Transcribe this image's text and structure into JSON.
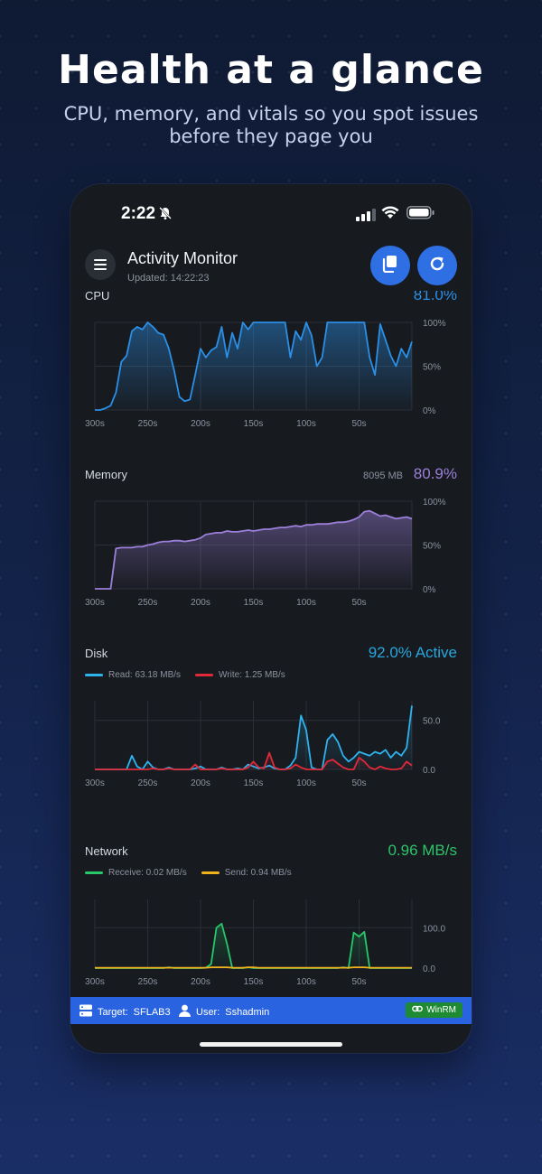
{
  "promo": {
    "headline": "Health at a glance",
    "subline": "CPU, memory, and vitals so you spot issues before they page you"
  },
  "status_bar": {
    "time": "2:22"
  },
  "app": {
    "title": "Activity Monitor",
    "updated": "Updated: 14:22:23",
    "copy_button_icon": "copy-icon",
    "refresh_button_icon": "refresh-icon",
    "menu_icon": "hamburger-icon"
  },
  "sections": {
    "cpu": {
      "title": "CPU",
      "value": "81.0%",
      "color": "#2b8fe6"
    },
    "memory": {
      "title": "Memory",
      "aux": "8095 MB",
      "value": "80.9%",
      "color": "#9b7fd9"
    },
    "disk": {
      "title": "Disk",
      "value": "92.0% Active",
      "color": "#29a6dd",
      "legend": [
        {
          "label": "Read: 63.18 MB/s",
          "color": "#2fb3ee"
        },
        {
          "label": "Write: 1.25 MB/s",
          "color": "#e02a3a"
        }
      ]
    },
    "network": {
      "title": "Network",
      "value": "0.96 MB/s",
      "color": "#2ec46a",
      "legend": [
        {
          "label": "Receive: 0.02 MB/s",
          "color": "#27c76a"
        },
        {
          "label": "Send: 0.94 MB/s",
          "color": "#f1b21c"
        }
      ]
    }
  },
  "chart_data": [
    {
      "id": "cpu",
      "type": "area",
      "x": [
        300,
        295,
        290,
        285,
        280,
        275,
        270,
        265,
        260,
        255,
        250,
        245,
        240,
        235,
        230,
        225,
        220,
        215,
        210,
        205,
        200,
        195,
        190,
        185,
        180,
        175,
        170,
        165,
        160,
        155,
        150,
        145,
        140,
        135,
        130,
        125,
        120,
        115,
        110,
        105,
        100,
        95,
        90,
        85,
        80,
        75,
        70,
        65,
        60,
        55,
        50,
        45,
        40,
        35,
        30,
        25,
        20,
        15,
        10,
        5,
        0
      ],
      "xticks": [
        "300s",
        "250s",
        "200s",
        "150s",
        "100s",
        "50s"
      ],
      "yticks": [
        "100%",
        "50%",
        "0%"
      ],
      "ylim": [
        0,
        100
      ],
      "series": [
        {
          "values": [
            0,
            0,
            2,
            5,
            20,
            55,
            62,
            90,
            95,
            92,
            100,
            95,
            88,
            86,
            70,
            45,
            15,
            10,
            12,
            40,
            70,
            60,
            68,
            72,
            95,
            60,
            88,
            70,
            100,
            92,
            100,
            100,
            100,
            100,
            100,
            100,
            100,
            60,
            90,
            80,
            100,
            85,
            50,
            60,
            100,
            100,
            100,
            100,
            100,
            100,
            100,
            100,
            60,
            40,
            98,
            80,
            62,
            50,
            70,
            60,
            78
          ]
        }
      ]
    },
    {
      "id": "memory",
      "type": "area",
      "x": [
        300,
        295,
        290,
        285,
        280,
        275,
        270,
        265,
        260,
        255,
        250,
        245,
        240,
        235,
        230,
        225,
        220,
        215,
        210,
        205,
        200,
        195,
        190,
        185,
        180,
        175,
        170,
        165,
        160,
        155,
        150,
        145,
        140,
        135,
        130,
        125,
        120,
        115,
        110,
        105,
        100,
        95,
        90,
        85,
        80,
        75,
        70,
        65,
        60,
        55,
        50,
        45,
        40,
        35,
        30,
        25,
        20,
        15,
        10,
        5,
        0
      ],
      "xticks": [
        "300s",
        "250s",
        "200s",
        "150s",
        "100s",
        "50s"
      ],
      "yticks": [
        "100%",
        "50%",
        "0%"
      ],
      "ylim": [
        0,
        100
      ],
      "series": [
        {
          "values": [
            0,
            0,
            0,
            0,
            46,
            47,
            47,
            47,
            48,
            48,
            50,
            51,
            53,
            54,
            54,
            55,
            55,
            54,
            55,
            56,
            58,
            62,
            63,
            64,
            64,
            66,
            65,
            65,
            66,
            67,
            66,
            67,
            68,
            68,
            69,
            70,
            70,
            71,
            72,
            71,
            73,
            73,
            74,
            74,
            74,
            75,
            76,
            76,
            77,
            79,
            82,
            88,
            89,
            86,
            83,
            84,
            82,
            80,
            81,
            82,
            80
          ]
        }
      ]
    },
    {
      "id": "disk",
      "type": "line",
      "x": [
        300,
        295,
        290,
        285,
        280,
        275,
        270,
        265,
        260,
        255,
        250,
        245,
        240,
        235,
        230,
        225,
        220,
        215,
        210,
        205,
        200,
        195,
        190,
        185,
        180,
        175,
        170,
        165,
        160,
        155,
        150,
        145,
        140,
        135,
        130,
        125,
        120,
        115,
        110,
        105,
        100,
        95,
        90,
        85,
        80,
        75,
        70,
        65,
        60,
        55,
        50,
        45,
        40,
        35,
        30,
        25,
        20,
        15,
        10,
        5,
        0
      ],
      "xticks": [
        "300s",
        "250s",
        "200s",
        "150s",
        "100s",
        "50s"
      ],
      "yticks": [
        "50.0",
        "0.0"
      ],
      "ylim": [
        0,
        70
      ],
      "series": [
        {
          "name": "Read",
          "values": [
            0,
            0,
            0,
            0,
            0,
            0,
            0,
            14,
            3,
            0,
            8,
            2,
            0,
            0,
            2,
            0,
            0,
            0,
            0,
            1,
            3,
            0,
            0,
            0,
            2,
            0,
            0,
            1,
            0,
            5,
            3,
            1,
            2,
            4,
            1,
            0,
            0,
            4,
            12,
            55,
            40,
            2,
            0,
            0,
            30,
            36,
            28,
            14,
            8,
            12,
            18,
            16,
            14,
            18,
            16,
            20,
            12,
            18,
            14,
            22,
            65
          ]
        },
        {
          "name": "Write",
          "values": [
            0,
            0,
            0,
            0,
            0,
            0,
            0,
            0,
            0,
            0,
            0,
            1,
            0,
            0,
            1,
            0,
            0,
            0,
            0,
            5,
            0,
            0,
            0,
            0,
            1,
            0,
            0,
            0,
            0,
            2,
            8,
            2,
            1,
            17,
            2,
            0,
            0,
            1,
            5,
            2,
            0,
            0,
            0,
            0,
            8,
            10,
            6,
            2,
            0,
            0,
            12,
            8,
            2,
            0,
            3,
            1,
            0,
            0,
            1,
            8,
            4
          ]
        }
      ]
    },
    {
      "id": "network",
      "type": "line",
      "x": [
        300,
        295,
        290,
        285,
        280,
        275,
        270,
        265,
        260,
        255,
        250,
        245,
        240,
        235,
        230,
        225,
        220,
        215,
        210,
        205,
        200,
        195,
        190,
        185,
        180,
        175,
        170,
        165,
        160,
        155,
        150,
        145,
        140,
        135,
        130,
        125,
        120,
        115,
        110,
        105,
        100,
        95,
        90,
        85,
        80,
        75,
        70,
        65,
        60,
        55,
        50,
        45,
        40,
        35,
        30,
        25,
        20,
        15,
        10,
        5,
        0
      ],
      "xticks": [
        "300s",
        "250s",
        "200s",
        "150s",
        "100s",
        "50s"
      ],
      "yticks": [
        "100.0",
        "0.0"
      ],
      "ylim": [
        0,
        170
      ],
      "series": [
        {
          "name": "Receive",
          "values": [
            0,
            0,
            0,
            0,
            0,
            0,
            0,
            0,
            0,
            0,
            0,
            0,
            0,
            0,
            2,
            0,
            0,
            0,
            0,
            0,
            0,
            1,
            10,
            100,
            110,
            60,
            0,
            0,
            0,
            2,
            0,
            0,
            0,
            0,
            0,
            0,
            0,
            0,
            0,
            0,
            0,
            0,
            0,
            0,
            0,
            0,
            0,
            2,
            0,
            88,
            78,
            90,
            0,
            0,
            0,
            0,
            0,
            0,
            0,
            0,
            0
          ]
        },
        {
          "name": "Send",
          "values": [
            1,
            1,
            1,
            1,
            1,
            1,
            1,
            1,
            1,
            1,
            1,
            1,
            1,
            1,
            1,
            1,
            1,
            1,
            1,
            1,
            1,
            1,
            2,
            2,
            2,
            2,
            1,
            1,
            1,
            2,
            2,
            1,
            1,
            1,
            1,
            1,
            1,
            1,
            1,
            1,
            1,
            1,
            1,
            1,
            1,
            1,
            1,
            1,
            1,
            2,
            2,
            2,
            1,
            1,
            1,
            1,
            1,
            1,
            1,
            1,
            1
          ]
        }
      ]
    }
  ],
  "footer": {
    "target_label": "Target:",
    "target_value": "SFLAB3",
    "user_label": "User:",
    "user_value": "Sshadmin",
    "badge": "WinRM"
  }
}
